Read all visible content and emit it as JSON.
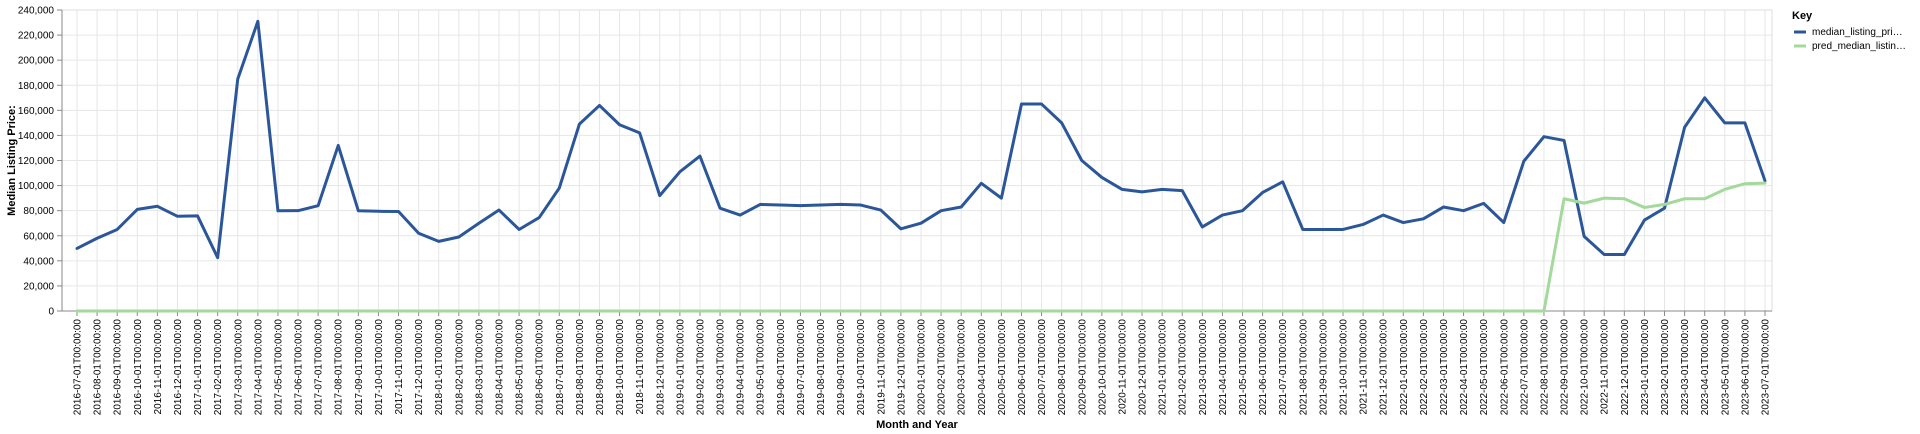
{
  "chart_data": {
    "type": "line",
    "xlabel": "Month and Year",
    "ylabel": "Median Listing Price:",
    "ylim": [
      0,
      240000
    ],
    "y_ticks": [
      "0",
      "20,000",
      "40,000",
      "60,000",
      "80,000",
      "100,000",
      "120,000",
      "140,000",
      "160,000",
      "180,000",
      "200,000",
      "220,000",
      "240,000"
    ],
    "grid": true,
    "legend": {
      "title": "Key",
      "placement": "top-right",
      "entries": [
        "median_listing_pri…",
        "pred_median_listin…"
      ]
    },
    "x": [
      "2016-07-01T00:00:00",
      "2016-08-01T00:00:00",
      "2016-09-01T00:00:00",
      "2016-10-01T00:00:00",
      "2016-11-01T00:00:00",
      "2016-12-01T00:00:00",
      "2017-01-01T00:00:00",
      "2017-02-01T00:00:00",
      "2017-03-01T00:00:00",
      "2017-04-01T00:00:00",
      "2017-05-01T00:00:00",
      "2017-06-01T00:00:00",
      "2017-07-01T00:00:00",
      "2017-08-01T00:00:00",
      "2017-09-01T00:00:00",
      "2017-10-01T00:00:00",
      "2017-11-01T00:00:00",
      "2017-12-01T00:00:00",
      "2018-01-01T00:00:00",
      "2018-02-01T00:00:00",
      "2018-03-01T00:00:00",
      "2018-04-01T00:00:00",
      "2018-05-01T00:00:00",
      "2018-06-01T00:00:00",
      "2018-07-01T00:00:00",
      "2018-08-01T00:00:00",
      "2018-09-01T00:00:00",
      "2018-10-01T00:00:00",
      "2018-11-01T00:00:00",
      "2018-12-01T00:00:00",
      "2019-01-01T00:00:00",
      "2019-02-01T00:00:00",
      "2019-03-01T00:00:00",
      "2019-04-01T00:00:00",
      "2019-05-01T00:00:00",
      "2019-06-01T00:00:00",
      "2019-07-01T00:00:00",
      "2019-08-01T00:00:00",
      "2019-09-01T00:00:00",
      "2019-10-01T00:00:00",
      "2019-11-01T00:00:00",
      "2019-12-01T00:00:00",
      "2020-01-01T00:00:00",
      "2020-02-01T00:00:00",
      "2020-03-01T00:00:00",
      "2020-04-01T00:00:00",
      "2020-05-01T00:00:00",
      "2020-06-01T00:00:00",
      "2020-07-01T00:00:00",
      "2020-08-01T00:00:00",
      "2020-09-01T00:00:00",
      "2020-10-01T00:00:00",
      "2020-11-01T00:00:00",
      "2020-12-01T00:00:00",
      "2021-01-01T00:00:00",
      "2021-02-01T00:00:00",
      "2021-03-01T00:00:00",
      "2021-04-01T00:00:00",
      "2021-05-01T00:00:00",
      "2021-06-01T00:00:00",
      "2021-07-01T00:00:00",
      "2021-08-01T00:00:00",
      "2021-09-01T00:00:00",
      "2021-10-01T00:00:00",
      "2021-11-01T00:00:00",
      "2021-12-01T00:00:00",
      "2022-01-01T00:00:00",
      "2022-02-01T00:00:00",
      "2022-03-01T00:00:00",
      "2022-04-01T00:00:00",
      "2022-05-01T00:00:00",
      "2022-06-01T00:00:00",
      "2022-07-01T00:00:00",
      "2022-08-01T00:00:00",
      "2022-09-01T00:00:00",
      "2022-10-01T00:00:00",
      "2022-11-01T00:00:00",
      "2022-12-01T00:00:00",
      "2023-01-01T00:00:00",
      "2023-02-01T00:00:00",
      "2023-03-01T00:00:00",
      "2023-04-01T00:00:00",
      "2023-05-01T00:00:00",
      "2023-06-01T00:00:00",
      "2023-07-01T00:00:00"
    ],
    "series": [
      {
        "name": "median_listing_pri…",
        "color": "#2b579a",
        "values": [
          49900,
          58000,
          65000,
          81000,
          83500,
          75500,
          75800,
          42500,
          185000,
          231000,
          79900,
          80000,
          84000,
          132000,
          79900,
          79500,
          79300,
          62000,
          55500,
          59000,
          70000,
          80500,
          65000,
          74500,
          98000,
          149000,
          163900,
          148500,
          142000,
          92000,
          111000,
          123500,
          82000,
          76500,
          85000,
          84500,
          84000,
          84500,
          85000,
          84500,
          80500,
          65500,
          70000,
          80000,
          82900,
          101800,
          90000,
          165000,
          165000,
          150000,
          120000,
          106500,
          97000,
          95000,
          97000,
          96000,
          67000,
          76500,
          80000,
          94500,
          103000,
          65000,
          65000,
          65000,
          69000,
          76500,
          70500,
          73500,
          82900,
          80000,
          85800,
          70500,
          119500,
          139000,
          136000,
          59500,
          45000,
          45000,
          72500,
          82000,
          146500,
          170000,
          150000,
          150000,
          103800
        ]
      },
      {
        "name": "pred_median_listin…",
        "color": "#a3d99b",
        "values": [
          0,
          0,
          0,
          0,
          0,
          0,
          0,
          0,
          0,
          0,
          0,
          0,
          0,
          0,
          0,
          0,
          0,
          0,
          0,
          0,
          0,
          0,
          0,
          0,
          0,
          0,
          0,
          0,
          0,
          0,
          0,
          0,
          0,
          0,
          0,
          0,
          0,
          0,
          0,
          0,
          0,
          0,
          0,
          0,
          0,
          0,
          0,
          0,
          0,
          0,
          0,
          0,
          0,
          0,
          0,
          0,
          0,
          0,
          0,
          0,
          0,
          0,
          0,
          0,
          0,
          0,
          0,
          0,
          0,
          0,
          0,
          0,
          0,
          0,
          89500,
          86000,
          90000,
          89500,
          82500,
          85000,
          89500,
          89500,
          97000,
          101500,
          102000
        ]
      }
    ]
  }
}
